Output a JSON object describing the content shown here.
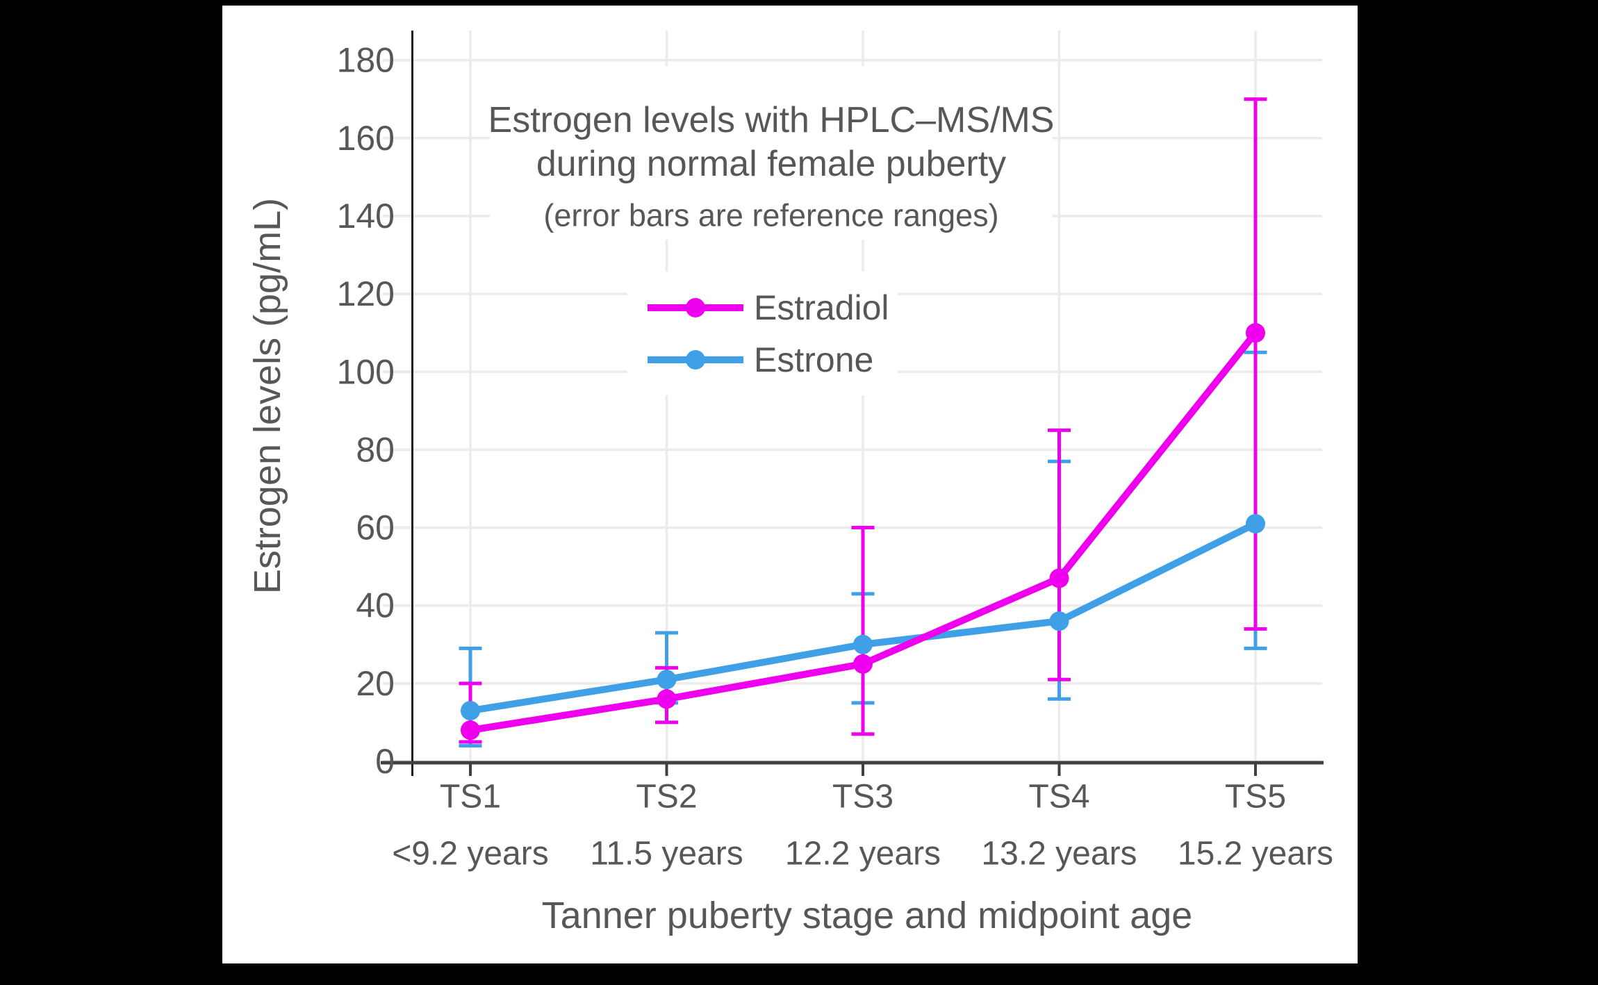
{
  "figure": {
    "title_line1": "Estrogen levels with HPLC–MS/MS",
    "title_line2": "during normal female puberty",
    "subtitle": "(error bars are reference ranges)"
  },
  "chart_data": {
    "type": "line",
    "title": "Estrogen levels with HPLC–MS/MS during normal female puberty",
    "subtitle": "(error bars are reference ranges)",
    "xlabel": "Tanner puberty stage and midpoint age",
    "ylabel": "Estrogen levels (pg/mL)",
    "ylim": [
      0,
      180
    ],
    "yticks": [
      0,
      20,
      40,
      60,
      80,
      100,
      120,
      140,
      160,
      180
    ],
    "grid": true,
    "legend_position": "inside-upper-center",
    "categories": [
      "TS1",
      "TS2",
      "TS3",
      "TS4",
      "TS5"
    ],
    "category_sublabels": [
      "<9.2 years",
      "11.5 years",
      "12.2 years",
      "13.2 years",
      "15.2 years"
    ],
    "error_bar_meaning": "reference ranges",
    "series": [
      {
        "name": "Estrone",
        "color": "#3FA0E8",
        "values": [
          13,
          21,
          30,
          36,
          61
        ],
        "error_low": [
          4,
          15,
          15,
          16,
          29
        ],
        "error_high": [
          29,
          33,
          43,
          77,
          105
        ]
      },
      {
        "name": "Estradiol",
        "color": "#EE00EE",
        "values": [
          8,
          16,
          25,
          47,
          110
        ],
        "error_low": [
          5,
          10,
          7,
          21,
          34
        ],
        "error_high": [
          20,
          24,
          60,
          85,
          170
        ]
      }
    ]
  },
  "colors": {
    "background": "#000000",
    "panel": "#FFFFFF",
    "gridline": "#EBEBEB",
    "x_axis_line": "#404040",
    "y_axis_line": "#191919",
    "text": "#575757",
    "estradiol": "#EE00EE",
    "estrone": "#3FA0E8"
  }
}
